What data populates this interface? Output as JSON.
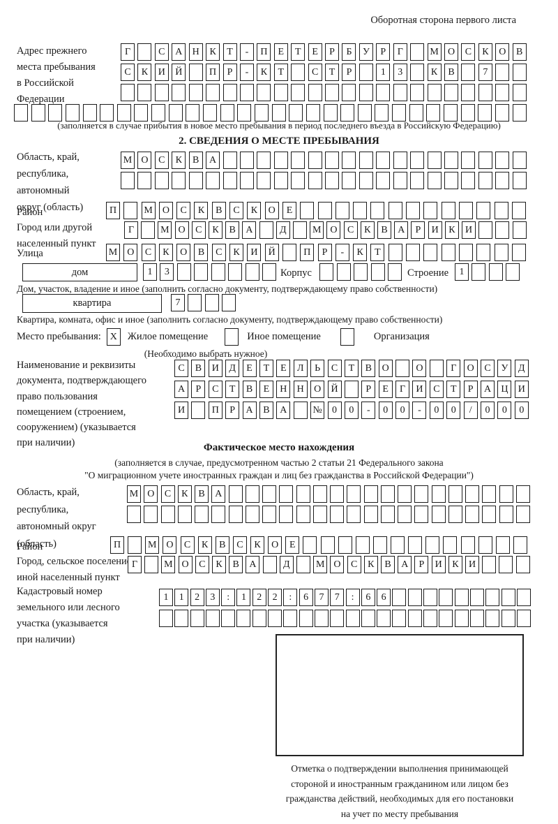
{
  "header": {
    "side_note": "Оборотная сторона первого листа"
  },
  "prev_address": {
    "label_lines": [
      "Адрес прежнего",
      "места пребывания",
      "в Российской",
      "Федерации"
    ],
    "row1": {
      "c": "Г САНКТ-ПЕТЕРБУРГ МОСКОВ",
      "n": 24
    },
    "row2": {
      "c": "СКИЙ ПР-КТ СТР 13 КВ 7",
      "n": 24
    },
    "row3": {
      "c": "",
      "n": 24
    },
    "row4": {
      "c": "",
      "n": 30
    },
    "note": "(заполняется в случае прибытия в новое место пребывания в период последнего въезда в Российскую Федерацию)"
  },
  "section2": {
    "title": "2. СВЕДЕНИЯ О МЕСТЕ ПРЕБЫВАНИЯ",
    "oblast": {
      "label_lines": [
        "Область, край,",
        "республика,",
        "автономный",
        "округ (область)"
      ],
      "row1": {
        "c": "МОСКВА",
        "n": 24
      },
      "row2": {
        "c": "",
        "n": 24
      }
    },
    "rayon": {
      "label": "Район",
      "row": {
        "c": "П МОСКВСКОЕ",
        "n": 24
      }
    },
    "gorod": {
      "label_lines": [
        "Город или другой",
        "населенный пункт"
      ],
      "row": {
        "c": "Г МОСКВА Д МОСКВАРИКИ",
        "n": 24
      }
    },
    "ulitsa": {
      "label": "Улица",
      "row": {
        "c": "МОСКОВСКИЙ ПР-КТ",
        "n": 24
      }
    },
    "dom": {
      "box_label": "дом",
      "digits": {
        "c": "13",
        "n": 8
      },
      "korpus_label": "Корпус",
      "korpus": {
        "c": "",
        "n": 5
      },
      "stroenie_label": "Строение",
      "stroenie": {
        "c": "1",
        "n": 4
      },
      "note": "Дом, участок, владение и иное (заполнить согласно документу, подтверждающему право собственности)"
    },
    "kvartira": {
      "box_label": "квартира",
      "digits": {
        "c": "7",
        "n": 4
      },
      "note": "Квартира, комната, офис и иное (заполнить согласно документу, подтверждающему право собственности)"
    },
    "mesto": {
      "label": "Место пребывания:",
      "opt1": {
        "box": {
          "c": "X",
          "n": 1
        },
        "label": "Жилое помещение"
      },
      "opt2": {
        "box": {
          "c": "",
          "n": 1
        },
        "label": "Иное помещение"
      },
      "opt3": {
        "box": {
          "c": "",
          "n": 1
        },
        "label": "Организация"
      },
      "note": "(Необходимо выбрать нужное)"
    },
    "doc": {
      "label_lines": [
        "Наименование и реквизиты",
        "документа, подтверждающего",
        "право пользования",
        "помещением (строением,",
        "сооружением) (указывается",
        "при наличии)"
      ],
      "row1": {
        "c": "СВИДЕТЕЛЬСТВО О ГОСУД",
        "n": 21
      },
      "row2": {
        "c": "АРСТВЕННОЙ РЕГИСТРАЦИ",
        "n": 21
      },
      "row3": {
        "c": "И ПРАВА №00-00-00/000",
        "n": 21
      }
    }
  },
  "fact": {
    "title": "Фактическое место нахождения",
    "note_lines": [
      "(заполняется в случае, предусмотренном частью 2 статьи 21 Федерального закона",
      "\"О миграционном учете иностранных граждан и лиц без гражданства в Российской Федерации\")"
    ],
    "oblast": {
      "label_lines": [
        "Область, край,",
        "республика,",
        "автономный округ",
        "(область)"
      ],
      "row1": {
        "c": "МОСКВА",
        "n": 24
      },
      "row2": {
        "c": "",
        "n": 24
      }
    },
    "rayon": {
      "label": "Район",
      "row": {
        "c": "П МОСКВСКОЕ",
        "n": 24
      }
    },
    "gorod": {
      "label_lines": [
        "Город, сельское поселение,",
        "иной населенный пункт"
      ],
      "row": {
        "c": "Г МОСКВА Д МОСКВАРИКИ",
        "n": 24
      }
    },
    "kadastr": {
      "label_lines": [
        "Кадастровый номер",
        "земельного или лесного",
        "участка (указывается",
        "при наличии)"
      ],
      "row1": {
        "c": "1123:122:677:66",
        "n": 24
      },
      "row2": {
        "c": "",
        "n": 24
      }
    },
    "stamp_caption_lines": [
      "Отметка о подтверждении выполнения принимающей",
      "стороной и иностранным гражданином или лицом без",
      "гражданства действий, необходимых для его постановки",
      "на учет по месту пребывания"
    ]
  }
}
